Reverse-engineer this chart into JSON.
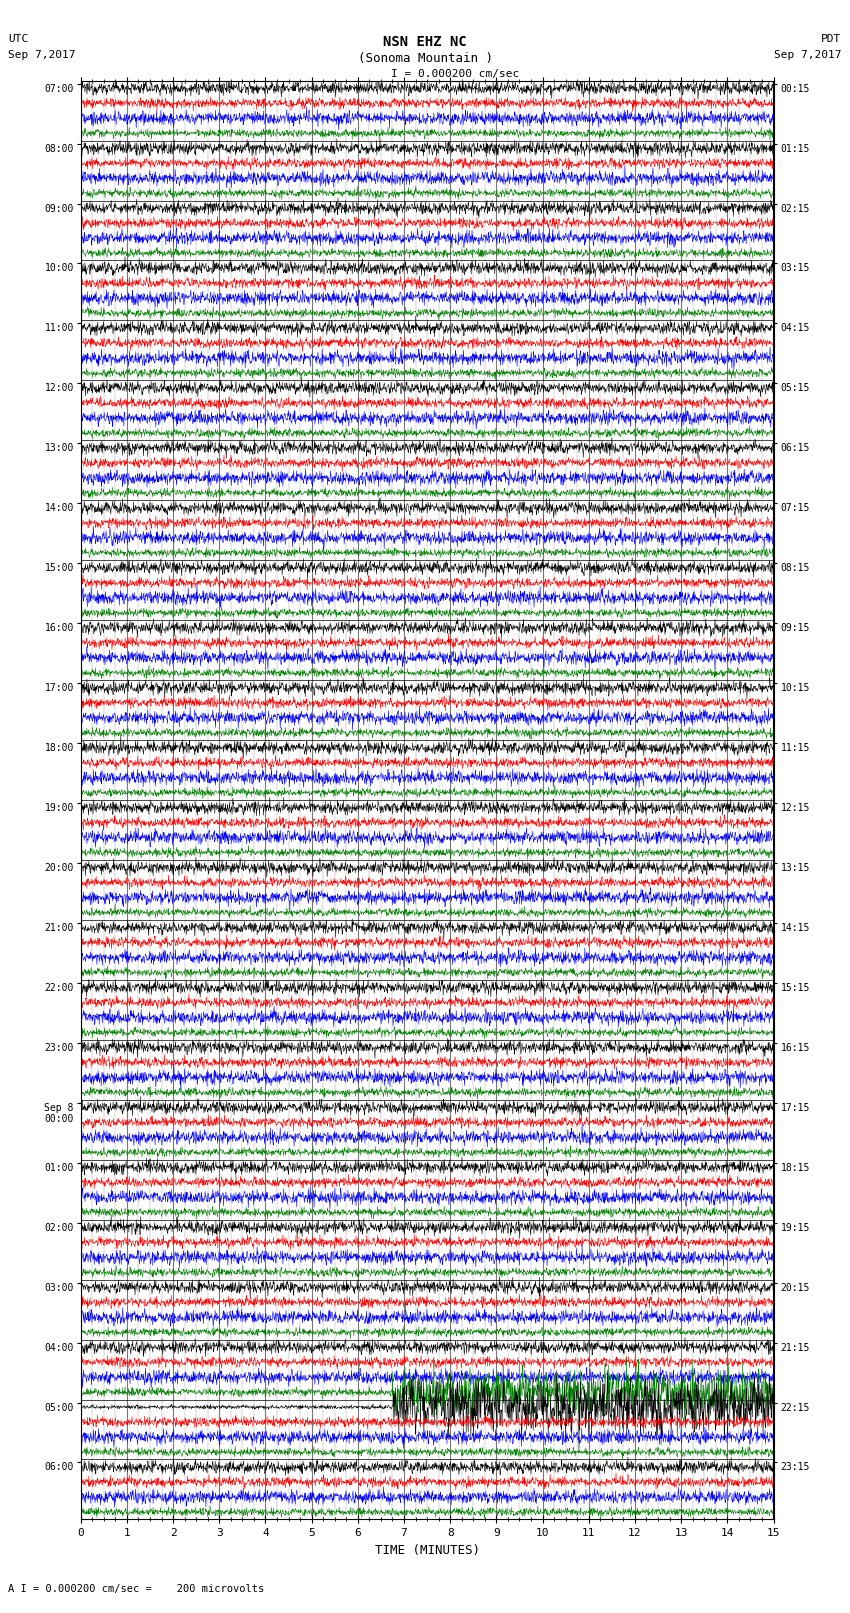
{
  "title_line1": "NSN EHZ NC",
  "title_line2": "(Sonoma Mountain )",
  "scale_label": "I = 0.000200 cm/sec",
  "left_label": "UTC",
  "left_date": "Sep 7,2017",
  "right_label": "PDT",
  "right_date": "Sep 7,2017",
  "bottom_label": "TIME (MINUTES)",
  "bottom_note": "A I = 0.000200 cm/sec =    200 microvolts",
  "utc_times": [
    "07:00",
    "08:00",
    "09:00",
    "10:00",
    "11:00",
    "12:00",
    "13:00",
    "14:00",
    "15:00",
    "16:00",
    "17:00",
    "18:00",
    "19:00",
    "20:00",
    "21:00",
    "22:00",
    "23:00",
    "Sep 8\n00:00",
    "01:00",
    "02:00",
    "03:00",
    "04:00",
    "05:00",
    "06:00"
  ],
  "pdt_times": [
    "00:15",
    "01:15",
    "02:15",
    "03:15",
    "04:15",
    "05:15",
    "06:15",
    "07:15",
    "08:15",
    "09:15",
    "10:15",
    "11:15",
    "12:15",
    "13:15",
    "14:15",
    "15:15",
    "16:15",
    "17:15",
    "18:15",
    "19:15",
    "20:15",
    "21:15",
    "22:15",
    "23:15"
  ],
  "n_groups": 24,
  "traces_per_group": 4,
  "colors": [
    "black",
    "red",
    "blue",
    "green"
  ],
  "bg_color": "white",
  "fig_width": 8.5,
  "fig_height": 16.13,
  "dpi": 100,
  "xmin": 0,
  "xmax": 15,
  "noise_amplitude": [
    0.28,
    0.22,
    0.3,
    0.18
  ],
  "special_group": 22,
  "special_trace_color_idx": 0,
  "special_group_green_idx": 21,
  "grid_minor_color": "#888888",
  "grid_minor_lw": 0.4,
  "sep8_group": 17
}
